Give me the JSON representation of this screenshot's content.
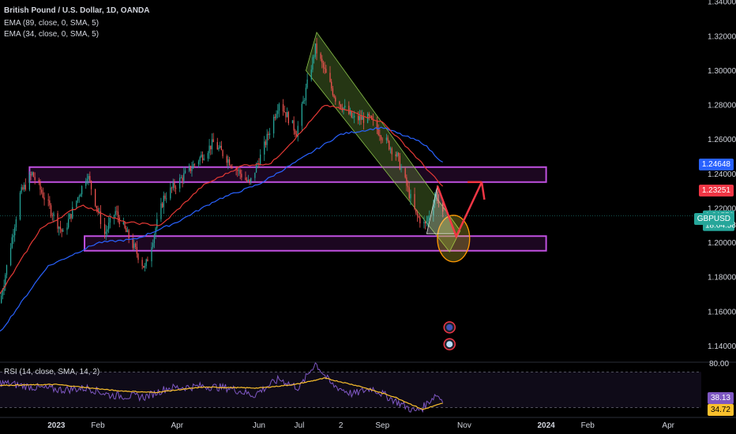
{
  "header": {
    "title": "British Pound / U.S. Dollar, 1D, OANDA",
    "ema89": "EMA (89, close, 0, SMA, 5)",
    "ema34": "EMA (34, close, 0, SMA, 5)"
  },
  "rsi_header": "RSI (14, close, SMA, 14, 2)",
  "tags": {
    "ema89_value": "1.24648",
    "ema34_value": "1.23251",
    "symbol": "GBPUSD",
    "price": "1.21550",
    "countdown": "18:04:58",
    "rsi_value": "38.13",
    "rsi_ma_value": "34.72"
  },
  "colors": {
    "background": "#000000",
    "up": "#26a69a",
    "down": "#ef5350",
    "ema34": "#e53935",
    "ema89": "#2962ff",
    "zone": "#9c27b0",
    "channel": "#6a9a3a",
    "forecast": "#f23645",
    "ellipse": "#ff9800",
    "rsi": "#7e57c2",
    "rsi_ma": "#fbc02d"
  },
  "chart_data": {
    "type": "candlestick",
    "symbol": "GBPUSD",
    "timeframe": "1D",
    "x_tick_labels": [
      "2023",
      "Feb",
      "Apr",
      "Jun",
      "Jul",
      "2",
      "Sep",
      "Nov",
      "2024",
      "Feb",
      "Apr"
    ],
    "y_tick_labels": [
      "1.34000",
      "1.32000",
      "1.30000",
      "1.28000",
      "1.26000",
      "1.24000",
      "1.22000",
      "1.20000",
      "1.18000",
      "1.16000",
      "1.14000"
    ],
    "ylim": [
      1.131,
      1.341
    ],
    "anchors": [
      [
        "2022-11-20",
        1.165
      ],
      [
        "2022-12-05",
        1.228
      ],
      [
        "2022-12-14",
        1.24
      ],
      [
        "2023-01-06",
        1.205
      ],
      [
        "2023-01-24",
        1.24
      ],
      [
        "2023-02-06",
        1.205
      ],
      [
        "2023-02-14",
        1.218
      ],
      [
        "2023-03-08",
        1.185
      ],
      [
        "2023-03-22",
        1.226
      ],
      [
        "2023-04-12",
        1.244
      ],
      [
        "2023-04-28",
        1.258
      ],
      [
        "2023-05-25",
        1.234
      ],
      [
        "2023-06-05",
        1.256
      ],
      [
        "2023-06-16",
        1.282
      ],
      [
        "2023-06-29",
        1.264
      ],
      [
        "2023-07-13",
        1.313
      ],
      [
        "2023-07-28",
        1.284
      ],
      [
        "2023-08-10",
        1.272
      ],
      [
        "2023-08-22",
        1.272
      ],
      [
        "2023-08-30",
        1.264
      ],
      [
        "2023-09-12",
        1.25
      ],
      [
        "2023-09-26",
        1.216
      ],
      [
        "2023-10-03",
        1.21
      ],
      [
        "2023-10-11",
        1.229
      ],
      [
        "2023-10-16",
        1.2155
      ]
    ],
    "ema34_anchors": [
      [
        "2022-11-20",
        1.17
      ],
      [
        "2022-12-20",
        1.208
      ],
      [
        "2023-01-20",
        1.222
      ],
      [
        "2023-02-20",
        1.212
      ],
      [
        "2023-03-20",
        1.21
      ],
      [
        "2023-04-20",
        1.233
      ],
      [
        "2023-05-20",
        1.245
      ],
      [
        "2023-06-10",
        1.246
      ],
      [
        "2023-07-01",
        1.263
      ],
      [
        "2023-07-20",
        1.28
      ],
      [
        "2023-08-10",
        1.276
      ],
      [
        "2023-09-01",
        1.27
      ],
      [
        "2023-09-20",
        1.255
      ],
      [
        "2023-10-16",
        1.2325
      ]
    ],
    "ema89_anchors": [
      [
        "2022-11-20",
        1.148
      ],
      [
        "2022-12-25",
        1.186
      ],
      [
        "2023-02-01",
        1.2
      ],
      [
        "2023-03-01",
        1.202
      ],
      [
        "2023-04-01",
        1.212
      ],
      [
        "2023-05-01",
        1.225
      ],
      [
        "2023-06-01",
        1.234
      ],
      [
        "2023-07-01",
        1.248
      ],
      [
        "2023-08-01",
        1.263
      ],
      [
        "2023-09-01",
        1.267
      ],
      [
        "2023-10-01",
        1.258
      ],
      [
        "2023-10-16",
        1.2465
      ]
    ],
    "zones": [
      {
        "name": "resistance",
        "x0": "2022-12-12",
        "x1": "2024-01-01",
        "y0": 1.2352,
        "y1": 1.2439
      },
      {
        "name": "support",
        "x0": "2023-01-22",
        "x1": "2024-01-01",
        "y0": 1.1953,
        "y1": 1.2038
      }
    ],
    "channel": [
      [
        "2023-07-06",
        1.3
      ],
      [
        "2023-07-14",
        1.3222
      ],
      [
        "2023-10-29",
        1.2069
      ],
      [
        "2023-10-21",
        1.1947
      ]
    ],
    "forecast_path": [
      [
        "2023-10-12",
        1.233
      ],
      [
        "2023-10-26",
        1.2036
      ],
      [
        "2023-11-14",
        1.2352
      ],
      [
        "2023-11-16",
        1.225
      ]
    ],
    "forecast_triangle": [
      [
        "2023-10-12",
        1.233
      ],
      [
        "2023-10-25",
        1.2052
      ],
      [
        "2023-10-04",
        1.2052
      ]
    ],
    "forecast_ellipse": {
      "center": [
        "2023-10-24",
        1.2024
      ],
      "rx_days": 12,
      "ry": 0.0135
    },
    "current_price": 1.2155,
    "ema34_last": 1.23251,
    "ema89_last": 1.24648,
    "rsi": {
      "y_tick_labels": [
        "80.00"
      ],
      "ylim": [
        20,
        80
      ],
      "bands": [
        30,
        70
      ],
      "last": 38.13,
      "ma_last": 34.72,
      "anchors": [
        [
          "2022-11-20",
          58
        ],
        [
          "2022-12-05",
          55
        ],
        [
          "2022-12-20",
          52
        ],
        [
          "2023-01-05",
          50
        ],
        [
          "2023-01-25",
          52
        ],
        [
          "2023-02-10",
          44
        ],
        [
          "2023-03-08",
          42
        ],
        [
          "2023-03-25",
          52
        ],
        [
          "2023-04-20",
          54
        ],
        [
          "2023-05-10",
          52
        ],
        [
          "2023-05-28",
          44
        ],
        [
          "2023-06-16",
          62
        ],
        [
          "2023-07-01",
          52
        ],
        [
          "2023-07-13",
          80
        ],
        [
          "2023-07-25",
          56
        ],
        [
          "2023-08-10",
          45
        ],
        [
          "2023-08-24",
          52
        ],
        [
          "2023-09-10",
          38
        ],
        [
          "2023-09-25",
          26
        ],
        [
          "2023-10-01",
          30
        ],
        [
          "2023-10-11",
          45
        ],
        [
          "2023-10-16",
          38
        ]
      ],
      "ma_anchors": [
        [
          "2022-11-20",
          55
        ],
        [
          "2023-01-01",
          56
        ],
        [
          "2023-02-15",
          49
        ],
        [
          "2023-03-15",
          47
        ],
        [
          "2023-04-20",
          53
        ],
        [
          "2023-06-01",
          52
        ],
        [
          "2023-06-28",
          56
        ],
        [
          "2023-07-20",
          63
        ],
        [
          "2023-08-15",
          54
        ],
        [
          "2023-09-10",
          42
        ],
        [
          "2023-10-01",
          28
        ],
        [
          "2023-10-16",
          35
        ]
      ]
    }
  }
}
